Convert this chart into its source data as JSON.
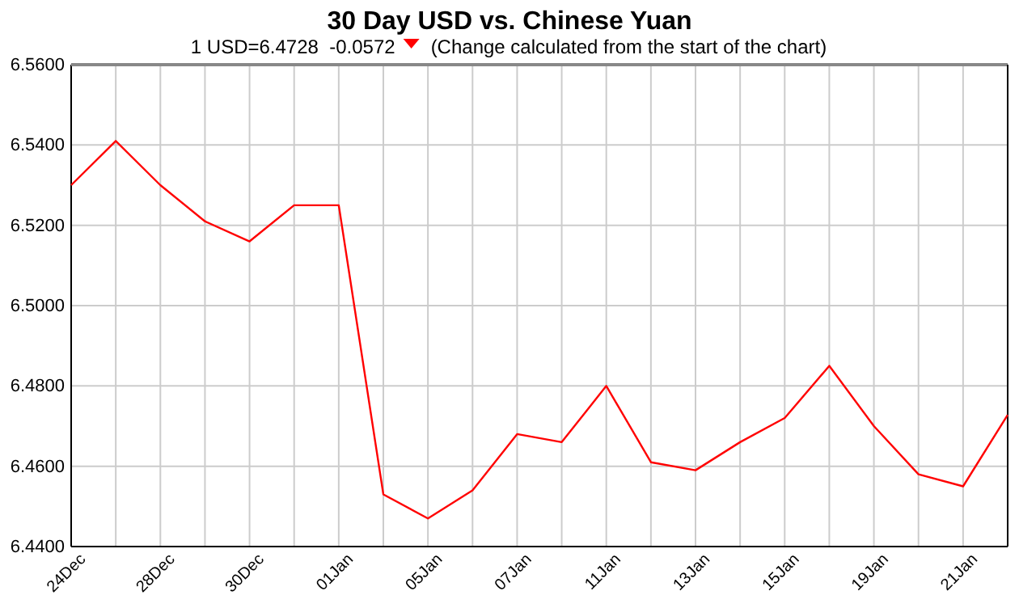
{
  "chart_data": {
    "type": "line",
    "title": "30 Day USD vs. Chinese Yuan",
    "subtitle": "1 USD=6.4728  -0.0572",
    "annotations": [
      "(Change calculated from the start of the chart)"
    ],
    "categories": [
      "24Dec",
      null,
      "28Dec",
      null,
      "30Dec",
      null,
      "01Jan",
      null,
      "05Jan",
      null,
      "07Jan",
      null,
      "11Jan",
      null,
      "13Jan",
      null,
      "15Jan",
      null,
      "19Jan",
      null,
      "21Jan",
      null
    ],
    "series": [
      {
        "color": "#ff0000",
        "values": [
          6.53,
          6.541,
          6.53,
          6.521,
          6.516,
          6.525,
          6.525,
          6.453,
          6.447,
          6.454,
          6.468,
          6.466,
          6.48,
          6.461,
          6.459,
          6.466,
          6.472,
          6.485,
          6.47,
          6.458,
          6.455,
          6.4728
        ]
      }
    ],
    "ylim": [
      6.44,
      6.56
    ],
    "yticks": [
      {
        "value": 6.44,
        "label": "6.4400"
      },
      {
        "value": 6.46,
        "label": "6.4600"
      },
      {
        "value": 6.48,
        "label": "6.4800"
      },
      {
        "value": 6.5,
        "label": "6.5000"
      },
      {
        "value": 6.52,
        "label": "6.5200"
      },
      {
        "value": 6.54,
        "label": "6.5400"
      },
      {
        "value": 6.56,
        "label": "6.5600"
      }
    ],
    "grid": true,
    "marker": "none",
    "line_style": "solid"
  }
}
